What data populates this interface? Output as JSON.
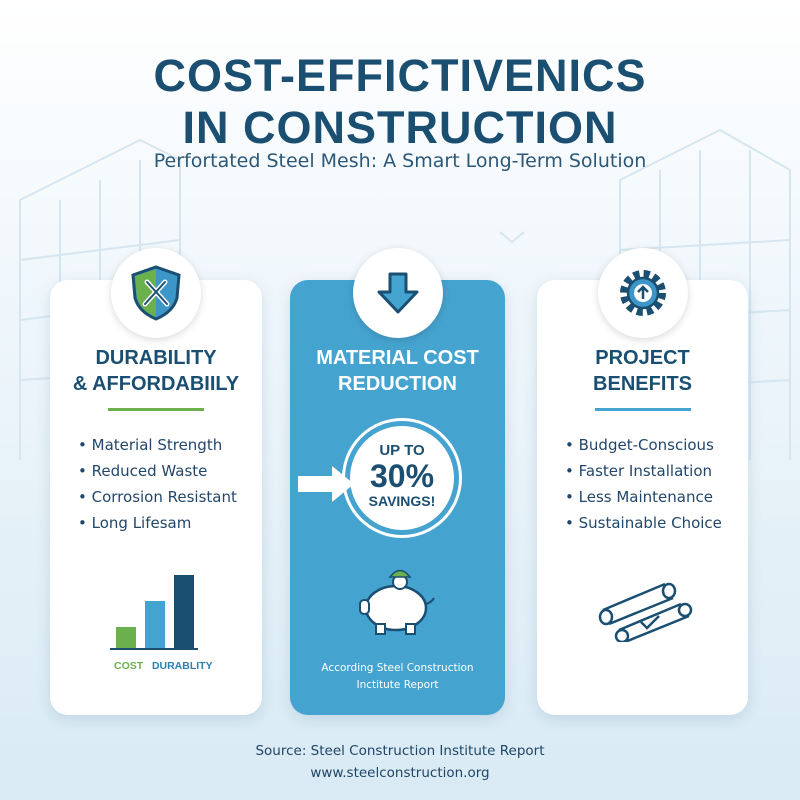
{
  "header": {
    "title_line1": "COST-EFFICTIVENICS",
    "title_line2": "IN CONSTRUCTION",
    "subtitle": "Perfortated Steel Mesh: A Smart Long-Term Solution"
  },
  "cards": [
    {
      "title_line1": "DURABILITY",
      "title_line2": "& AFFORDABIILY",
      "icon": "shield-wrench-icon",
      "items": [
        "Material Strength",
        "Reduced Waste",
        "Corrosion Resistant",
        "Long Lifesam"
      ],
      "chart_labels": [
        "COST",
        "DURABLITY"
      ]
    },
    {
      "title_line1": "MATERIAL COST",
      "title_line2": "REDUCTION",
      "icon": "arrow-down-icon",
      "badge": {
        "line1": "UP TO",
        "value": "30%",
        "line2": "SAVINGS!"
      },
      "note": "According Steel Construction Inctitute Report"
    },
    {
      "title_line1": "PROJECT",
      "title_line2": "BENEFITS",
      "icon": "gear-upload-icon",
      "items": [
        "Budget-Conscious",
        "Faster Installation",
        "Less Maintenance",
        "Sustainable Choice"
      ]
    }
  ],
  "footer": {
    "source": "Source: Steel Construction Institute Report",
    "url": "www.steelconstruction.org"
  },
  "colors": {
    "navy": "#1b4f72",
    "blue": "#45a3cf",
    "green": "#6ab04c"
  }
}
